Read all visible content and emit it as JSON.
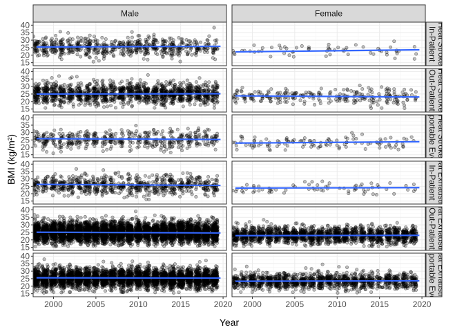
{
  "chart_data": {
    "type": "scatter",
    "xlabel": "Year",
    "ylabel": "BMI (kg/m²)",
    "xlim": [
      1997.6,
      2020.4
    ],
    "ylim": [
      13,
      42
    ],
    "x_ticks": [
      2000,
      2005,
      2010,
      2015,
      2020
    ],
    "y_ticks": [
      15,
      20,
      25,
      30,
      35,
      40
    ],
    "column_facets": [
      "Male",
      "Female"
    ],
    "row_facets": [
      "Heat Stroke In-Patient",
      "Heat Stroke Out-Patient",
      "Heat Stroke Reportable Event",
      "Heat Exhaustion In-Patient",
      "Heat Exhaustion Out-Patient",
      "Heat Exhaustion Reportable Event"
    ],
    "panels": [
      {
        "row": 0,
        "col": 0,
        "n": 650,
        "mean": 25.5,
        "sd": 3.6,
        "trend": [
          [
            1998,
            25.5
          ],
          [
            2019.7,
            25.9
          ]
        ]
      },
      {
        "row": 0,
        "col": 1,
        "n": 60,
        "mean": 22.5,
        "sd": 2.5,
        "trend": [
          [
            1998,
            22.2
          ],
          [
            2019.7,
            23.6
          ]
        ]
      },
      {
        "row": 1,
        "col": 0,
        "n": 1500,
        "mean": 25.2,
        "sd": 3.8,
        "trend": [
          [
            1998,
            25.0
          ],
          [
            2019.7,
            25.2
          ]
        ]
      },
      {
        "row": 1,
        "col": 1,
        "n": 260,
        "mean": 23.5,
        "sd": 2.8,
        "trend": [
          [
            1998,
            23.8
          ],
          [
            2019.7,
            23.0
          ]
        ]
      },
      {
        "row": 2,
        "col": 0,
        "n": 470,
        "mean": 25.5,
        "sd": 3.6,
        "trend": [
          [
            1998,
            25.9
          ],
          [
            2019.7,
            25.3
          ]
        ]
      },
      {
        "row": 2,
        "col": 1,
        "n": 110,
        "mean": 23.0,
        "sd": 2.6,
        "trend": [
          [
            1998,
            22.9
          ],
          [
            2019.7,
            23.8
          ]
        ]
      },
      {
        "row": 3,
        "col": 0,
        "n": 750,
        "mean": 25.8,
        "sd": 3.6,
        "trend": [
          [
            1998,
            26.3
          ],
          [
            2019.7,
            25.6
          ]
        ]
      },
      {
        "row": 3,
        "col": 1,
        "n": 70,
        "mean": 23.4,
        "sd": 2.5,
        "trend": [
          [
            1998,
            23.8
          ],
          [
            2019.7,
            24.1
          ]
        ]
      },
      {
        "row": 4,
        "col": 0,
        "n": 5500,
        "mean": 25.0,
        "sd": 3.6,
        "trend": [
          [
            1998,
            25.1
          ],
          [
            2019.7,
            24.6
          ]
        ]
      },
      {
        "row": 4,
        "col": 1,
        "n": 1800,
        "mean": 23.0,
        "sd": 3.0,
        "trend": [
          [
            1998,
            22.8
          ],
          [
            2019.7,
            23.0
          ]
        ]
      },
      {
        "row": 5,
        "col": 0,
        "n": 3800,
        "mean": 25.3,
        "sd": 3.6,
        "trend": [
          [
            1998,
            25.6
          ],
          [
            2019.7,
            25.4
          ]
        ]
      },
      {
        "row": 5,
        "col": 1,
        "n": 1300,
        "mean": 23.5,
        "sd": 3.0,
        "trend": [
          [
            1998,
            23.3
          ],
          [
            2019.7,
            23.6
          ]
        ]
      }
    ],
    "point_style": {
      "fill": "#000000",
      "fill_opacity": 0.25,
      "stroke": "#000000",
      "stroke_opacity": 0.5
    },
    "trend_color": "#3366FF",
    "strip_fill": "#D9D9D9",
    "panel_border": "#333333",
    "grid_major": "#EBEBEB",
    "grid_minor": "#F5F5F5",
    "grid": true
  }
}
